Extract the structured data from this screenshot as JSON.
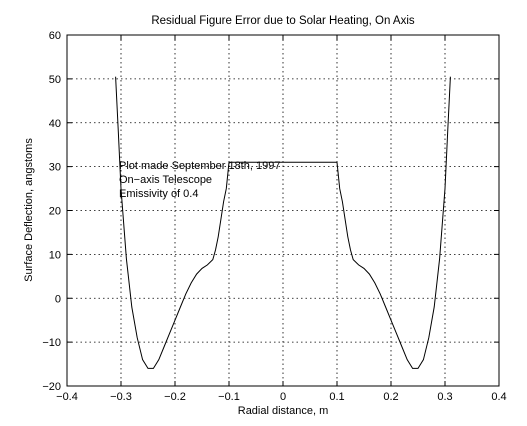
{
  "chart_data": {
    "type": "line",
    "title": "Residual Figure Error due to Solar Heating, On Axis",
    "xlabel": "Radial distance, m",
    "ylabel": "Surface Deflection, angstoms",
    "xlim": [
      -0.4,
      0.4
    ],
    "ylim": [
      -20,
      60
    ],
    "xticks": [
      "-0.4",
      "-0.3",
      "-0.2",
      "-0.1",
      "0",
      "0.1",
      "0.2",
      "0.3",
      "0.4"
    ],
    "yticks": [
      "-20",
      "-10",
      "0",
      "10",
      "20",
      "30",
      "40",
      "50",
      "60"
    ],
    "grid": true,
    "annotations": [
      "Plot made September 18th, 1997",
      "On−axis Telescope",
      "Emissivity of 0.4"
    ],
    "series": [
      {
        "x": [
          -0.31,
          -0.305,
          -0.3,
          -0.29,
          -0.28,
          -0.27,
          -0.26,
          -0.25,
          -0.24,
          -0.23,
          -0.22,
          -0.21,
          -0.2,
          -0.19,
          -0.18,
          -0.17,
          -0.16,
          -0.15,
          -0.14,
          -0.13,
          -0.125,
          -0.12,
          -0.115,
          -0.11,
          -0.105,
          -0.1,
          0.1,
          0.105,
          0.11,
          0.115,
          0.12,
          0.125,
          0.13,
          0.14,
          0.15,
          0.16,
          0.17,
          0.18,
          0.19,
          0.2,
          0.21,
          0.22,
          0.23,
          0.24,
          0.25,
          0.26,
          0.27,
          0.28,
          0.29,
          0.3,
          0.305,
          0.31
        ],
        "y": [
          50.5,
          38,
          25,
          9,
          -2,
          -9,
          -14,
          -16,
          -16,
          -14,
          -11,
          -8,
          -5,
          -2,
          1,
          3.5,
          5.5,
          6.8,
          7.6,
          8.8,
          11,
          14,
          18,
          22,
          25,
          31,
          31,
          25,
          22,
          18,
          14,
          11,
          8.8,
          7.6,
          6.8,
          5.5,
          3.5,
          1,
          -2,
          -5,
          -8,
          -11,
          -14,
          -16,
          -16,
          -14,
          -9,
          -2,
          9,
          25,
          38,
          50.5
        ]
      }
    ]
  }
}
